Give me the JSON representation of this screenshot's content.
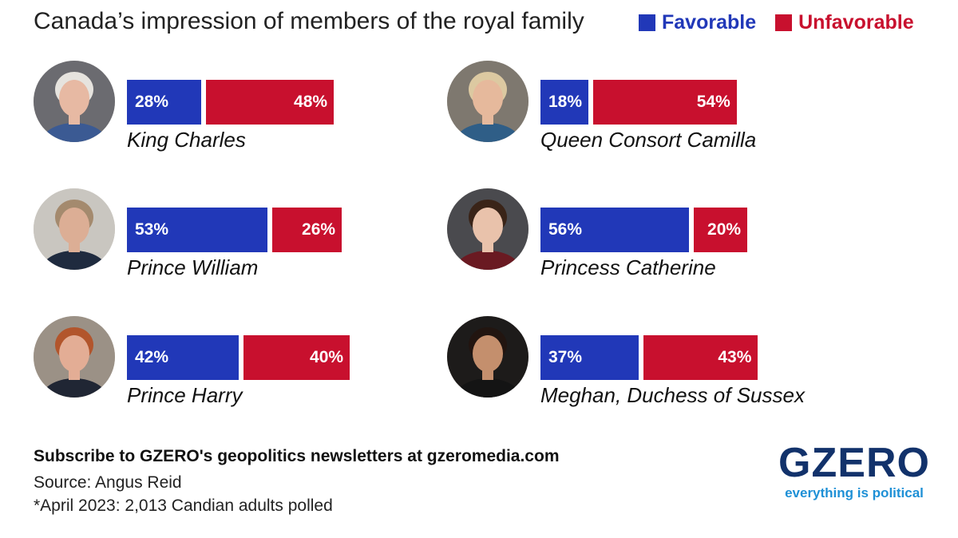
{
  "header": {
    "title": "Canada’s impression of members of the royal family",
    "legend": [
      {
        "label": "Favorable",
        "color": "#2138b8"
      },
      {
        "label": "Unfavorable",
        "color": "#c8102e"
      }
    ]
  },
  "chart_data": {
    "type": "bar",
    "stacked": true,
    "orientation": "horizontal",
    "title": "Canada’s impression of members of the royal family",
    "categories": [
      "King Charles",
      "Queen Consort Camilla",
      "Prince William",
      "Princess Catherine",
      "Prince Harry",
      "Meghan, Duchess of Sussex"
    ],
    "series": [
      {
        "name": "Favorable",
        "values": [
          28,
          18,
          53,
          56,
          42,
          37
        ],
        "labels": [
          "28%",
          "18%",
          "53%",
          "56%",
          "42%",
          "37%"
        ]
      },
      {
        "name": "Unfavorable",
        "values": [
          48,
          54,
          26,
          20,
          40,
          43
        ],
        "labels": [
          "48%",
          "54%",
          "26%",
          "20%",
          "40%",
          "43%"
        ]
      }
    ],
    "legend_position": "top-right",
    "grid": false
  },
  "photos": [
    {
      "icon": "king-charles-portrait-icon",
      "skin": "#e7b9a3",
      "hair": "#e6e3de",
      "top": "#3b5a93",
      "bg": "#6b6b70"
    },
    {
      "icon": "queen-camilla-portrait-icon",
      "skin": "#e6b99c",
      "hair": "#dcc9a1",
      "top": "#2f5e87",
      "bg": "#7e786f"
    },
    {
      "icon": "prince-william-portrait-icon",
      "skin": "#dcae95",
      "hair": "#a48a6e",
      "top": "#1f2b3f",
      "bg": "#c9c6c0"
    },
    {
      "icon": "princess-catherine-portrait-icon",
      "skin": "#e9c2ab",
      "hair": "#3a2418",
      "top": "#6a1a22",
      "bg": "#4a4a4e"
    },
    {
      "icon": "prince-harry-portrait-icon",
      "skin": "#e3ad95",
      "hair": "#b2552c",
      "top": "#202634",
      "bg": "#9b9186"
    },
    {
      "icon": "meghan-portrait-icon",
      "skin": "#c48f6d",
      "hair": "#221510",
      "top": "#141414",
      "bg": "#1d1b1a"
    }
  ],
  "footer": {
    "subscribe": "Subscribe to GZERO's geopolitics newsletters at gzeromedia.com",
    "source": "Source: Angus Reid",
    "note": "*April 2023: 2,013 Candian adults polled"
  },
  "logo": {
    "wordmark": "GZERO",
    "tagline": "everything is political"
  }
}
